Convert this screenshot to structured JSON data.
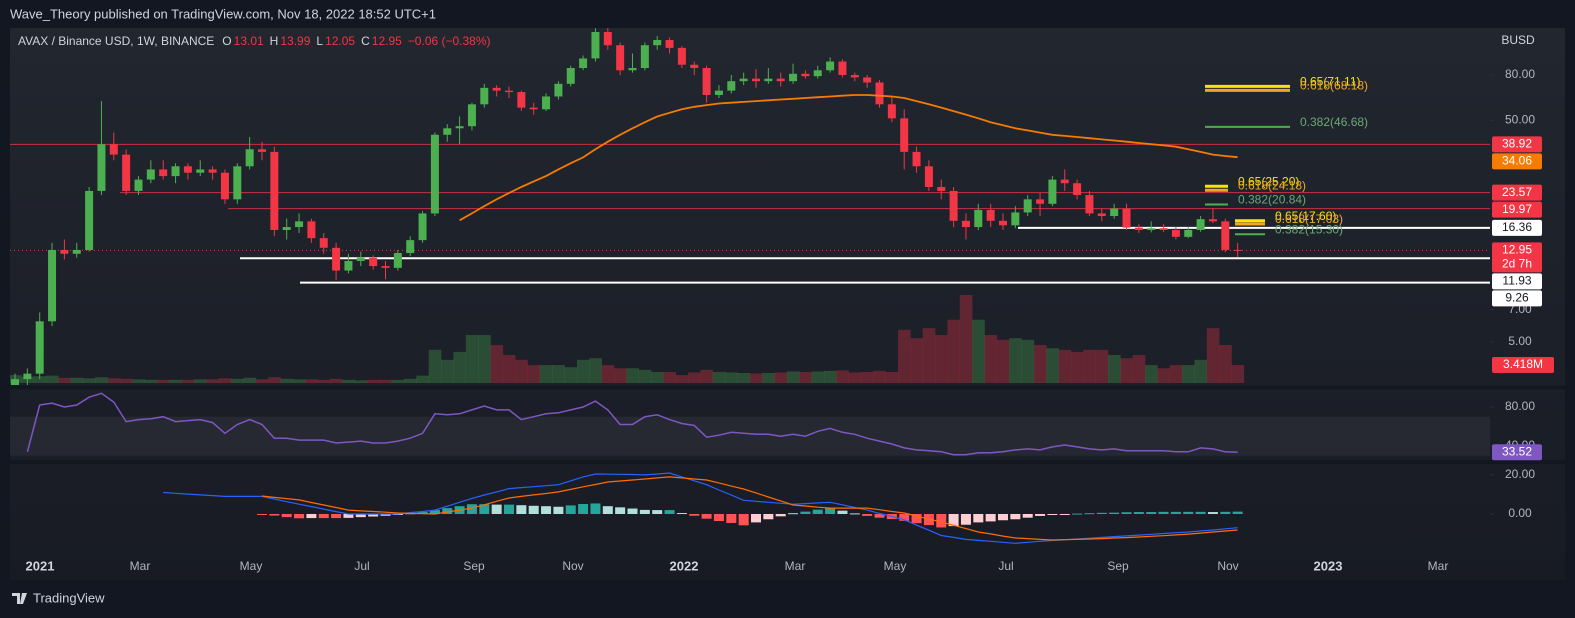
{
  "header": {
    "text": "Wave_Theory published on TradingView.com, Nov 18, 2022 18:52 UTC+1"
  },
  "footer": {
    "text": "TradingView"
  },
  "chart_data": {
    "type": "candlestick",
    "log": true,
    "legend": {
      "symbol": "AVAX / Binance USD, 1W, BINANCE",
      "letters": [
        "O",
        "H",
        "L",
        "C"
      ],
      "change": "−0.06 (−0.38%)"
    },
    "currency": "BUSD",
    "countdown": "2d 7h",
    "up_color": "#4caf50",
    "down_color": "#f23645",
    "ylim": [
      3.2,
      130.3
    ],
    "yticks": [
      {
        "value": 80,
        "label": "80.00"
      },
      {
        "value": 50,
        "label": "50.00"
      },
      {
        "value": 7,
        "label": "7.00"
      },
      {
        "value": 5,
        "label": "5.00"
      }
    ],
    "time_labels": [
      "2021",
      "Mar",
      "May",
      "Jul",
      "Sep",
      "Nov",
      "2022",
      "Mar",
      "May",
      "Jul",
      "Sep",
      "Nov",
      "2023",
      "Mar"
    ],
    "ohlc": [
      [
        3.0,
        3.6,
        2.9,
        3.4
      ],
      [
        3.4,
        3.8,
        3.2,
        3.6
      ],
      [
        3.6,
        6.8,
        3.4,
        6.2
      ],
      [
        6.2,
        14,
        5.9,
        13
      ],
      [
        13,
        14.5,
        11.8,
        12.5
      ],
      [
        12.5,
        14,
        12,
        13
      ],
      [
        13,
        25,
        12.8,
        24
      ],
      [
        24,
        61,
        23,
        39
      ],
      [
        39,
        44,
        33,
        35
      ],
      [
        35,
        37,
        23,
        24
      ],
      [
        24,
        28,
        23,
        27
      ],
      [
        27,
        33,
        26,
        30
      ],
      [
        30,
        33,
        27,
        28
      ],
      [
        28,
        32,
        26,
        31
      ],
      [
        31,
        32,
        27,
        29
      ],
      [
        29,
        33,
        28,
        30
      ],
      [
        30,
        31,
        27,
        29
      ],
      [
        29,
        30,
        21,
        22
      ],
      [
        22,
        32,
        21,
        31
      ],
      [
        31,
        42,
        30,
        37
      ],
      [
        37,
        40,
        33,
        36
      ],
      [
        36,
        38,
        15,
        16
      ],
      [
        16,
        18,
        14.5,
        16.5
      ],
      [
        16.5,
        19,
        15.5,
        17.5
      ],
      [
        17.5,
        18,
        14,
        14.7
      ],
      [
        14.7,
        15.5,
        12.5,
        13.3
      ],
      [
        13.3,
        14,
        9.5,
        10.5
      ],
      [
        10.5,
        12.5,
        10.2,
        11.6
      ],
      [
        11.6,
        12.8,
        11,
        12
      ],
      [
        12,
        12.3,
        10.6,
        11
      ],
      [
        11,
        11.6,
        9.6,
        10.8
      ],
      [
        10.8,
        13,
        10.5,
        12.6
      ],
      [
        12.6,
        15,
        12.2,
        14.4
      ],
      [
        14.4,
        19.5,
        14,
        19
      ],
      [
        19,
        44,
        18.5,
        43
      ],
      [
        43,
        48,
        40,
        46
      ],
      [
        46,
        52,
        39,
        47
      ],
      [
        47,
        60,
        45,
        59
      ],
      [
        59,
        73,
        57,
        70
      ],
      [
        70,
        72,
        64,
        68
      ],
      [
        68,
        71,
        63,
        67
      ],
      [
        67,
        68,
        55,
        57
      ],
      [
        57,
        60,
        53,
        56
      ],
      [
        56,
        66,
        55,
        64
      ],
      [
        64,
        75,
        62,
        73
      ],
      [
        73,
        88,
        71,
        86
      ],
      [
        86,
        98,
        84,
        95
      ],
      [
        95,
        130,
        92,
        125
      ],
      [
        125,
        135,
        104,
        109
      ],
      [
        109,
        112,
        80,
        84
      ],
      [
        84,
        100,
        82,
        86
      ],
      [
        86,
        112,
        84,
        109
      ],
      [
        109,
        120,
        104,
        115
      ],
      [
        115,
        118,
        100,
        106
      ],
      [
        106,
        108,
        86,
        89
      ],
      [
        89,
        92,
        80,
        86
      ],
      [
        86,
        88,
        60,
        65
      ],
      [
        65,
        72,
        63,
        68
      ],
      [
        68,
        80,
        66,
        75
      ],
      [
        75,
        82,
        72,
        77
      ],
      [
        77,
        85,
        70,
        75
      ],
      [
        75,
        86,
        73,
        77
      ],
      [
        77,
        82,
        71,
        75
      ],
      [
        75,
        90,
        73,
        81
      ],
      [
        81,
        84,
        77,
        79
      ],
      [
        79,
        88,
        77,
        84
      ],
      [
        84,
        96,
        82,
        92
      ],
      [
        92,
        94,
        78,
        80
      ],
      [
        80,
        82,
        75,
        78
      ],
      [
        78,
        80,
        70,
        74
      ],
      [
        74,
        76,
        57,
        59
      ],
      [
        59,
        64,
        49,
        51
      ],
      [
        51,
        56,
        30,
        36
      ],
      [
        36,
        38,
        29,
        31
      ],
      [
        31,
        33,
        24,
        25
      ],
      [
        25,
        27,
        22,
        24
      ],
      [
        24,
        25,
        16.5,
        17.6
      ],
      [
        17.6,
        19,
        14.5,
        16.5
      ],
      [
        16.5,
        21,
        16,
        19.7
      ],
      [
        19.7,
        21,
        16.5,
        17.6
      ],
      [
        17.6,
        19,
        16,
        16.8
      ],
      [
        16.8,
        20.5,
        16.3,
        19.2
      ],
      [
        19.2,
        23,
        18.5,
        22
      ],
      [
        22,
        23.5,
        18.5,
        21
      ],
      [
        21,
        28,
        20.5,
        27
      ],
      [
        27,
        30,
        24,
        26
      ],
      [
        26,
        27,
        22,
        23
      ],
      [
        23,
        24,
        18.5,
        19
      ],
      [
        19,
        20,
        17.5,
        18.5
      ],
      [
        18.5,
        21,
        18,
        20
      ],
      [
        20,
        21,
        16,
        16.4
      ],
      [
        16.4,
        17,
        15.5,
        16
      ],
      [
        16,
        17.5,
        15.6,
        16.3
      ],
      [
        16.3,
        17,
        15.7,
        16
      ],
      [
        16,
        16.5,
        14.5,
        14.9
      ],
      [
        14.9,
        16.5,
        14.7,
        16
      ],
      [
        16,
        18.5,
        15.7,
        17.9
      ],
      [
        17.9,
        20,
        17.2,
        17.5
      ],
      [
        17.5,
        18,
        12.7,
        13.01
      ],
      [
        13.01,
        13.99,
        12.05,
        12.95
      ]
    ],
    "volume": {
      "values": [
        1500000,
        1200000,
        1300000,
        1400000,
        1000000,
        1000000,
        900000,
        1100000,
        900000,
        800000,
        700000,
        600000,
        600000,
        600000,
        600000,
        700000,
        700000,
        900000,
        800000,
        1000000,
        700000,
        1100000,
        800000,
        700000,
        700000,
        600000,
        800000,
        600000,
        500000,
        600000,
        600000,
        600000,
        800000,
        1400000,
        6300000,
        4400000,
        5900000,
        9100000,
        9100000,
        7200000,
        5300000,
        4400000,
        3400000,
        3400000,
        3400000,
        3000000,
        4400000,
        4700000,
        3400000,
        2800000,
        2800000,
        2500000,
        2100000,
        2100000,
        1500000,
        2000000,
        2500000,
        2100000,
        2000000,
        1900000,
        1800000,
        1900000,
        2000000,
        2200000,
        2100000,
        2200000,
        2300000,
        2400000,
        2000000,
        2100000,
        2300000,
        2100000,
        10100000,
        8500000,
        10400000,
        9100000,
        12000000,
        16700000,
        12000000,
        9100000,
        8200000,
        8500000,
        8200000,
        7200000,
        6600000,
        6300000,
        5900000,
        6300000,
        6300000,
        5300000,
        4700000,
        5300000,
        3400000,
        2800000,
        3400000,
        3400000,
        4400000,
        10400000,
        7200000,
        3418000
      ],
      "last_label": "3.418M"
    },
    "ma": {
      "color": "#f57c00",
      "values": [
        null,
        null,
        null,
        null,
        null,
        null,
        null,
        null,
        null,
        null,
        null,
        null,
        null,
        null,
        null,
        null,
        null,
        null,
        null,
        null,
        null,
        null,
        null,
        null,
        null,
        null,
        null,
        null,
        null,
        null,
        null,
        null,
        null,
        null,
        null,
        null,
        17.7,
        19,
        20.5,
        22,
        23.5,
        25,
        26.5,
        28,
        30,
        32,
        34,
        37,
        40,
        43,
        46,
        49,
        52,
        54,
        56,
        57.5,
        58.5,
        59.5,
        60,
        60.5,
        61,
        61.5,
        62,
        62.5,
        63,
        63.5,
        64,
        64.5,
        65,
        65,
        64.5,
        64,
        63,
        61,
        59,
        57,
        55,
        53,
        51,
        49,
        47.5,
        46,
        45,
        44,
        43,
        42.5,
        42,
        41.5,
        41,
        40.5,
        40,
        39.5,
        39,
        38.5,
        38,
        37,
        36,
        35,
        34.5,
        34.06
      ]
    },
    "hlines": [
      {
        "value": 38.92,
        "color": "#f23645"
      },
      {
        "value": 23.57,
        "color": "#f23645"
      },
      {
        "value": 19.97,
        "color": "#f23645"
      },
      {
        "value": 16.36,
        "color": "#ffffff"
      },
      {
        "value": 11.93,
        "color": "#ffffff"
      },
      {
        "value": 9.26,
        "color": "#ffffff"
      }
    ],
    "fibs": [
      {
        "levels": [
          {
            "label": "0.65(71.11)",
            "value": 71.11,
            "color": "#f5e30b"
          },
          {
            "label": "0.618(68.18)",
            "value": 68.18,
            "color": "#f0a623"
          },
          {
            "label": "0.382(46.68)",
            "value": 46.68,
            "color": "#4caf50"
          }
        ]
      },
      {
        "levels": [
          {
            "label": "0.65(25.20)",
            "value": 25.2,
            "color": "#f5e30b"
          },
          {
            "label": "0.618(24.18)",
            "value": 24.18,
            "color": "#f0a623"
          },
          {
            "label": "0.382(20.84)",
            "value": 20.84,
            "color": "#4caf50"
          }
        ]
      },
      {
        "levels": [
          {
            "label": "0.65(17.60)",
            "value": 17.6,
            "color": "#f5e30b"
          },
          {
            "label": "0.618(17.03)",
            "value": 17.03,
            "color": "#f0a623"
          },
          {
            "label": "0.382(15.30)",
            "value": 15.3,
            "color": "#4caf50"
          }
        ]
      }
    ],
    "rsi": {
      "color": "#7e57c2",
      "ylim": [
        25.6,
        97.4
      ],
      "yticks": [
        {
          "value": 80,
          "label": "80.00"
        },
        {
          "value": 40,
          "label": "40.00"
        }
      ],
      "band": [
        30,
        70
      ],
      "values": [
        null,
        34,
        82,
        84,
        80,
        82,
        90,
        94,
        85,
        65,
        67,
        68,
        70,
        65,
        66,
        67,
        64,
        53,
        62,
        67,
        62,
        48,
        48,
        46,
        46,
        46,
        43,
        44,
        45,
        43,
        43,
        45,
        48,
        53,
        73,
        72,
        73,
        77,
        81,
        77,
        77,
        67,
        70,
        73,
        74,
        77,
        80,
        86,
        77,
        62,
        62,
        70,
        72,
        67,
        63,
        61,
        49,
        51,
        54,
        53,
        52,
        52,
        50,
        52,
        50,
        55,
        58,
        54,
        52,
        48,
        45,
        42,
        38,
        36,
        35,
        34,
        31,
        31,
        33,
        33,
        34,
        36,
        37,
        36,
        39,
        41,
        39,
        37,
        36,
        37,
        35,
        35,
        35,
        35,
        34,
        34,
        38,
        37,
        34,
        33.52
      ]
    },
    "macd": {
      "ylim": [
        -21,
        25.6
      ],
      "yticks": [
        {
          "value": 20,
          "label": "20.00"
        },
        {
          "value": 0,
          "label": "0.00"
        }
      ],
      "macd_color": "#2962ff",
      "signal_color": "#ff6d00",
      "macd": [
        null,
        null,
        null,
        null,
        null,
        null,
        null,
        null,
        null,
        null,
        null,
        null,
        11,
        10.6,
        10.2,
        9.8,
        9.4,
        9,
        9,
        9,
        9,
        7.7,
        6.3,
        5,
        3.8,
        2.5,
        1.2,
        0,
        0,
        0,
        0,
        0,
        0.7,
        1.3,
        2,
        4,
        6,
        8,
        9.7,
        11.3,
        13,
        13.5,
        14,
        14.5,
        15,
        17,
        19,
        20.5,
        20.4,
        20.3,
        20.2,
        20,
        20.5,
        21,
        19,
        17,
        15,
        12.3,
        9.7,
        7,
        6.5,
        6,
        5.5,
        5,
        5.3,
        5.7,
        6,
        4.7,
        3.3,
        2,
        0.3,
        -1.3,
        -3,
        -5.7,
        -8.3,
        -11,
        -12,
        -13,
        -13.5,
        -14,
        -14.5,
        -15,
        -14.5,
        -14,
        -13.6,
        -13.2,
        -12.8,
        -12.4,
        -12,
        -11.6,
        -11.2,
        -10.8,
        -10.4,
        -10,
        -9.6,
        -9.2,
        -8.7,
        -8.2,
        -7.6,
        -7
      ],
      "signal": [
        null,
        null,
        null,
        null,
        null,
        null,
        null,
        null,
        null,
        null,
        null,
        null,
        null,
        null,
        null,
        null,
        null,
        null,
        null,
        null,
        9.2,
        8.5,
        7.9,
        7.2,
        5.9,
        4.6,
        3.3,
        2,
        1.6,
        1.3,
        0.9,
        0.5,
        0.3,
        0.2,
        0,
        1,
        2,
        3,
        4.7,
        6.5,
        8.2,
        9,
        9.8,
        10.5,
        11.3,
        12.6,
        13.9,
        15.1,
        16.4,
        16.9,
        17.4,
        17.9,
        18.5,
        19,
        18.5,
        17.9,
        17.4,
        15.9,
        14.3,
        12.8,
        10.8,
        8.7,
        6.7,
        4.6,
        4.1,
        3.5,
        3,
        3,
        3,
        3,
        2.2,
        1.3,
        0.5,
        -1,
        -2.6,
        -4.1,
        -5.8,
        -7.5,
        -9.2,
        -10.2,
        -11.3,
        -12.3,
        -12.6,
        -13,
        -13.3,
        -13.1,
        -13,
        -12.8,
        -12.6,
        -12.3,
        -12.1,
        -11.8,
        -11.4,
        -11.1,
        -10.7,
        -10.3,
        -9.8,
        -9.2,
        -8.7,
        -8.2
      ],
      "histogram": [
        null,
        null,
        null,
        null,
        null,
        null,
        null,
        null,
        null,
        null,
        null,
        null,
        null,
        null,
        null,
        null,
        null,
        null,
        null,
        null,
        -0.2,
        -0.8,
        -1.6,
        -2.2,
        -2.1,
        -2.1,
        -2.1,
        -2,
        -1.6,
        -1.3,
        -0.9,
        -0.5,
        0.4,
        1.1,
        2,
        3,
        4,
        5,
        5,
        4.8,
        4.8,
        4.5,
        4.2,
        4,
        3.7,
        4.4,
        5.1,
        5.4,
        4,
        3.4,
        2.8,
        2.1,
        2,
        2,
        0.5,
        -0.9,
        -2.4,
        -3.6,
        -4.6,
        -5.8,
        -4.3,
        -2.7,
        -1.2,
        0.4,
        1.2,
        2.2,
        3,
        1.7,
        0.3,
        -1,
        -1.9,
        -2.6,
        -3.5,
        -4.7,
        -5.7,
        -6.9,
        -6.2,
        -5.5,
        -4.3,
        -3.8,
        -3.2,
        -2.7,
        -1.9,
        -1,
        -0.3,
        -0.1,
        0.2,
        0.4,
        0.6,
        0.7,
        0.9,
        1,
        1,
        1.1,
        1.1,
        1.1,
        1.1,
        1,
        1.1,
        1.2
      ]
    }
  }
}
